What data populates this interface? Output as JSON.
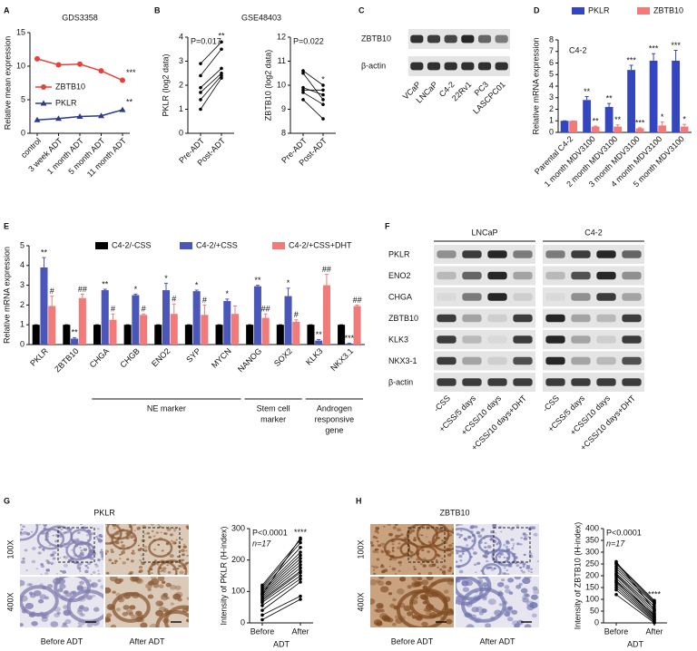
{
  "panel_labels": [
    "A",
    "B",
    "C",
    "D",
    "E",
    "F",
    "G",
    "H"
  ],
  "chart_data": [
    {
      "type": "line",
      "title": "GDS3358",
      "y_label": "Relative mean expression",
      "categories": [
        "control",
        "3 week ADT",
        "1 month ADT",
        "5 month ADT",
        "11 month ADT"
      ],
      "series": [
        {
          "name": "ZBTB10",
          "color": "#e8413c",
          "marker": "circle",
          "values": [
            11.1,
            10.2,
            10.3,
            9.3,
            7.9
          ],
          "end_label": "***"
        },
        {
          "name": "PKLR",
          "color": "#2b3a8c",
          "marker": "triangle",
          "values": [
            2.0,
            2.2,
            2.5,
            2.6,
            3.5
          ],
          "end_label": "**"
        }
      ],
      "ylim": [
        0,
        15
      ],
      "yticks": [
        0,
        5,
        10,
        15
      ]
    },
    {
      "type": "paired",
      "title": "GSE48403",
      "y_label": "PKLR (log2 data)",
      "p_value": "P=0.017",
      "significance": "**",
      "categories": [
        "Pre-ADT",
        "Post-ADT"
      ],
      "color": "#000000",
      "series": [
        {
          "values": [
            1.0,
            2.3
          ]
        },
        {
          "values": [
            1.4,
            2.4
          ]
        },
        {
          "values": [
            1.7,
            2.5
          ]
        },
        {
          "values": [
            1.9,
            2.7
          ]
        },
        {
          "values": [
            2.4,
            3.5
          ]
        },
        {
          "values": [
            2.9,
            3.8
          ]
        }
      ],
      "ylim": [
        0,
        4
      ],
      "yticks": [
        0,
        1,
        2,
        3,
        4
      ]
    },
    {
      "type": "paired",
      "y_label": "ZBTB10 (log2 data)",
      "p_value": "P=0.022",
      "significance": "*",
      "categories": [
        "Pre-ADT",
        "Post-ADT"
      ],
      "color": "#000000",
      "series": [
        {
          "values": [
            10.6,
            10.0
          ]
        },
        {
          "values": [
            10.5,
            9.4
          ]
        },
        {
          "values": [
            9.9,
            9.6
          ]
        },
        {
          "values": [
            9.8,
            9.8
          ]
        },
        {
          "values": [
            9.7,
            9.2
          ]
        },
        {
          "values": [
            9.4,
            8.6
          ]
        }
      ],
      "ylim": [
        8,
        12
      ],
      "yticks": [
        8,
        9,
        10,
        11,
        12
      ]
    },
    {
      "type": "bar",
      "annotation": "C4-2",
      "y_label": "Relative mRNA expression",
      "categories": [
        "Parental C4-2",
        "1 month MDV3100",
        "2 month MDV3100",
        "3 month MDV3100",
        "4 month MDV3100",
        "5 month MDV3100"
      ],
      "series": [
        {
          "name": "PKLR",
          "color": "#3346c0",
          "values": [
            1,
            2.8,
            2.2,
            5.4,
            6.2,
            6.2
          ],
          "errors": [
            0,
            0.3,
            0.3,
            0.4,
            0.6,
            0.9
          ],
          "significance": [
            null,
            "**",
            "**",
            "***",
            "***",
            "***"
          ]
        },
        {
          "name": "ZBTB10",
          "color": "#f07b78",
          "values": [
            1,
            0.5,
            0.5,
            0.35,
            0.6,
            0.5
          ],
          "errors": [
            0,
            0.05,
            0.15,
            0.05,
            0.3,
            0.2
          ],
          "significance": [
            null,
            "**",
            "**",
            "***",
            "*",
            "*"
          ]
        }
      ],
      "ylim": [
        0,
        8
      ],
      "yticks": [
        0,
        1,
        2,
        3,
        4,
        5,
        6,
        7,
        8
      ]
    },
    {
      "type": "bar",
      "y_label": "Relative mRNA expression",
      "categories": [
        "PKLR",
        "ZBTB10",
        "CHGA",
        "CHGB",
        "ENO2",
        "SYP",
        "MYCN",
        "NANOG",
        "SOX2",
        "KLK3",
        "NKX3.1"
      ],
      "series": [
        {
          "name": "C4-2/-CSS",
          "color": "#000000",
          "values": [
            1,
            1,
            1,
            1,
            1,
            1,
            1,
            1,
            1,
            1,
            1
          ],
          "errors": [
            0,
            0,
            0,
            0,
            0,
            0,
            0,
            0,
            0,
            0,
            0
          ],
          "significance": [
            null,
            null,
            null,
            null,
            null,
            null,
            null,
            null,
            null,
            null,
            null
          ]
        },
        {
          "name": "C4-2/+CSS",
          "color": "#4a56b8",
          "values": [
            3.9,
            0.3,
            2.75,
            2.5,
            2.75,
            2.7,
            2.2,
            2.95,
            2.45,
            0.2,
            0.05
          ],
          "errors": [
            0.5,
            0.05,
            0.05,
            0.05,
            0.35,
            0.05,
            0.1,
            0.05,
            0.4,
            0.05,
            0.02
          ],
          "significance": [
            "**",
            "**",
            "**",
            "*",
            "*",
            "*",
            "*",
            "**",
            "*",
            "**",
            "***"
          ]
        },
        {
          "name": "C4-2/+CSS+DHT",
          "color": "#f07b78",
          "values": [
            1.95,
            2.35,
            1.25,
            1.5,
            1.55,
            1.5,
            1.55,
            1.35,
            1.15,
            3.0,
            1.95
          ],
          "errors": [
            0.5,
            0.2,
            0.3,
            0.05,
            0.5,
            0.5,
            0.4,
            0.2,
            0.1,
            0.55,
            0.05
          ],
          "significance": [
            "#",
            "##",
            "#",
            "#",
            "#",
            "#",
            null,
            "##",
            "#",
            "##",
            "##"
          ]
        }
      ],
      "groups": [
        [
          "NE marker"
        ],
        [
          "Stem cell",
          "marker"
        ],
        [
          "Androgen",
          "responsive",
          "gene"
        ]
      ],
      "ylim": [
        0,
        5
      ],
      "yticks": [
        0,
        1,
        2,
        3,
        4,
        5
      ]
    },
    {
      "type": "paired",
      "y_label": "Intensity of PKLR (H-index)",
      "p_value": "P<0.0001",
      "n_label": "n=17",
      "significance": "****",
      "categories": [
        "Before",
        "After"
      ],
      "x_label": "ADT",
      "color": "#000000",
      "series": [
        {
          "values": [
            10,
            75
          ]
        },
        {
          "values": [
            25,
            85
          ]
        },
        {
          "values": [
            40,
            130
          ]
        },
        {
          "values": [
            55,
            140
          ]
        },
        {
          "values": [
            65,
            150
          ]
        },
        {
          "values": [
            75,
            165
          ]
        },
        {
          "values": [
            80,
            175
          ]
        },
        {
          "values": [
            85,
            185
          ]
        },
        {
          "values": [
            90,
            195
          ]
        },
        {
          "values": [
            95,
            205
          ]
        },
        {
          "values": [
            100,
            215
          ]
        },
        {
          "values": [
            105,
            225
          ]
        },
        {
          "values": [
            110,
            240
          ]
        },
        {
          "values": [
            115,
            255
          ]
        },
        {
          "values": [
            120,
            265
          ]
        },
        {
          "values": [
            90,
            270
          ]
        },
        {
          "values": [
            70,
            160
          ]
        }
      ],
      "ylim": [
        0,
        300
      ],
      "yticks": [
        0,
        100,
        200,
        300
      ]
    },
    {
      "type": "paired",
      "y_label": "Intensity of ZBTB10 (H-index)",
      "p_value": "P<0.0001",
      "n_label": "n=17",
      "significance": "****",
      "categories": [
        "Before",
        "After"
      ],
      "x_label": "ADT",
      "color": "#000000",
      "series": [
        {
          "values": [
            120,
            0
          ]
        },
        {
          "values": [
            140,
            5
          ]
        },
        {
          "values": [
            150,
            10
          ]
        },
        {
          "values": [
            160,
            15
          ]
        },
        {
          "values": [
            170,
            20
          ]
        },
        {
          "values": [
            180,
            25
          ]
        },
        {
          "values": [
            190,
            30
          ]
        },
        {
          "values": [
            200,
            40
          ]
        },
        {
          "values": [
            205,
            50
          ]
        },
        {
          "values": [
            210,
            60
          ]
        },
        {
          "values": [
            220,
            70
          ]
        },
        {
          "values": [
            230,
            80
          ]
        },
        {
          "values": [
            240,
            85
          ]
        },
        {
          "values": [
            250,
            90
          ]
        },
        {
          "values": [
            255,
            95
          ]
        },
        {
          "values": [
            260,
            55
          ]
        },
        {
          "values": [
            175,
            35
          ]
        }
      ],
      "ylim": [
        0,
        400
      ],
      "yticks": [
        0,
        50,
        100,
        150,
        200,
        250,
        300,
        350,
        400
      ]
    }
  ],
  "blot_c": {
    "rows": [
      "ZBTB10",
      "β-actin"
    ],
    "lanes": [
      "VCaP",
      "LNCaP",
      "C4-2",
      "22Rv1",
      "PC3",
      "LASCPC01"
    ]
  },
  "blot_f": {
    "groups": [
      "LNCaP",
      "C4-2"
    ],
    "rows": [
      "PKLR",
      "ENO2",
      "CHGA",
      "ZBTB10",
      "KLK3",
      "NKX3-1",
      "β-actin"
    ],
    "lanes": [
      "-CSS",
      "+CSS/5 days",
      "+CSS/10 days",
      "+CSS/10 days+DHT"
    ]
  },
  "histology_g": {
    "title": "PKLR",
    "magnifications": [
      "100X",
      "400X"
    ],
    "conditions": [
      "Before ADT",
      "After ADT"
    ]
  },
  "histology_h": {
    "title": "ZBTB10",
    "magnifications": [
      "100X",
      "400X"
    ],
    "conditions": [
      "Before ADT",
      "After ADT"
    ]
  }
}
